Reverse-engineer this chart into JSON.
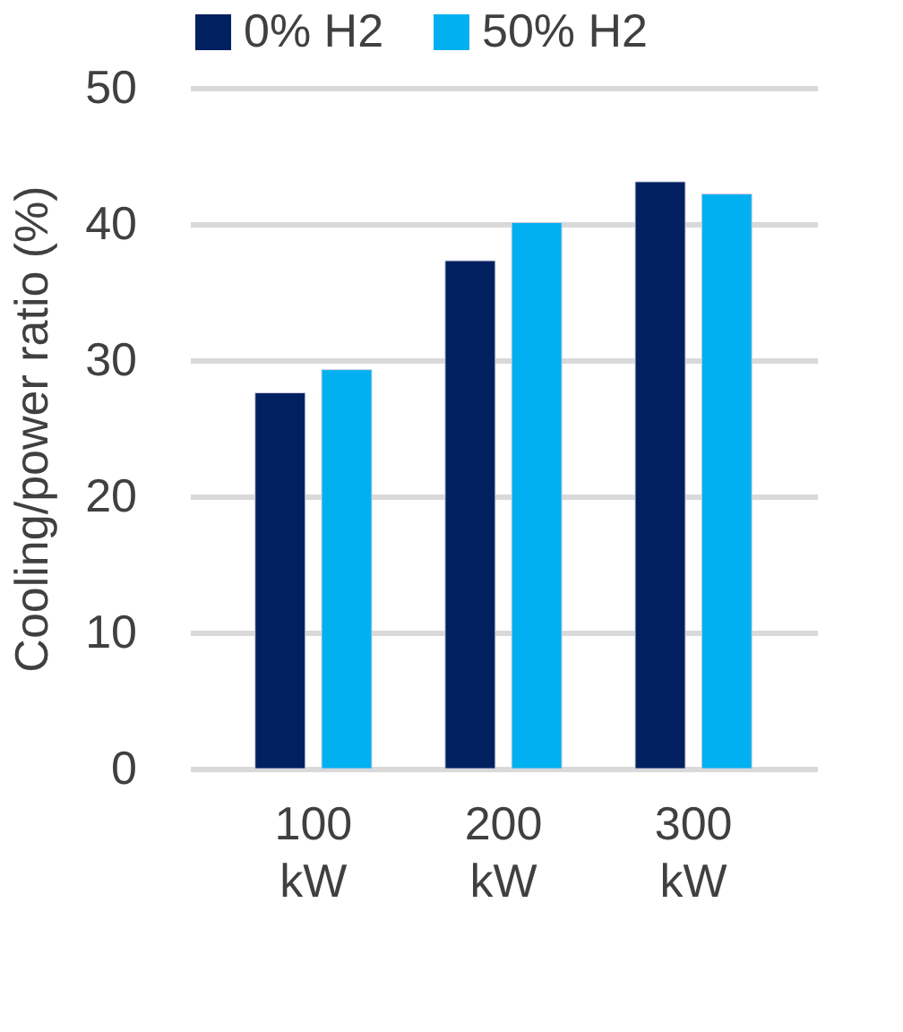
{
  "chart_data": {
    "type": "bar",
    "ylabel": "Cooling/power ratio (%)",
    "categories": [
      "100 kW",
      "200 kW",
      "300 kW"
    ],
    "series": [
      {
        "name": "0% H2",
        "color": "#002060",
        "values": [
          27.6,
          37.3,
          43.1
        ]
      },
      {
        "name": "50% H2",
        "color": "#00b0f0",
        "values": [
          29.3,
          40.1,
          42.2
        ]
      }
    ],
    "ylim": [
      0,
      50
    ],
    "yticks": [
      0,
      10,
      20,
      30,
      40,
      50
    ],
    "grid": "y",
    "legend": "top"
  }
}
